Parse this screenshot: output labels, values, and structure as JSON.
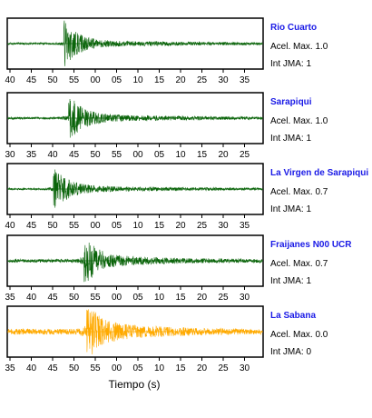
{
  "chart_data": {
    "type": "line",
    "xlabel": "Tiempo (s)",
    "panels": [
      {
        "station": "Rio Cuarto",
        "accel_label": "Acel. Max. 1.0",
        "jma_label": "Int JMA: 1",
        "color": "#0a640a",
        "tick_labels": [
          "40",
          "45",
          "50",
          "55",
          "00",
          "05",
          "10",
          "15",
          "20",
          "25",
          "30",
          "35"
        ],
        "arrival_fraction": 0.22,
        "relative_peak": 1.0,
        "coda_level": 0.12
      },
      {
        "station": "Sarapiqui",
        "accel_label": "Acel. Max. 1.0",
        "jma_label": "Int JMA: 1",
        "color": "#0a640a",
        "tick_labels": [
          "30",
          "35",
          "40",
          "45",
          "50",
          "55",
          "00",
          "05",
          "10",
          "15",
          "20",
          "25"
        ],
        "arrival_fraction": 0.24,
        "relative_peak": 0.95,
        "coda_level": 0.15
      },
      {
        "station": "La Virgen de Sarapiqui",
        "accel_label": "Acel. Max. 0.7",
        "jma_label": "Int JMA: 1",
        "color": "#0a640a",
        "tick_labels": [
          "40",
          "45",
          "50",
          "55",
          "00",
          "05",
          "10",
          "15",
          "20",
          "25",
          "30",
          "35"
        ],
        "arrival_fraction": 0.18,
        "relative_peak": 0.95,
        "coda_level": 0.12
      },
      {
        "station": "Fraijanes N00 UCR",
        "accel_label": "Acel. Max. 0.7",
        "jma_label": "Int JMA: 1",
        "color": "#0a640a",
        "tick_labels": [
          "35",
          "40",
          "45",
          "50",
          "55",
          "00",
          "05",
          "10",
          "15",
          "20",
          "25",
          "30"
        ],
        "arrival_fraction": 0.3,
        "relative_peak": 1.0,
        "coda_level": 0.2
      },
      {
        "station": "La Sabana",
        "accel_label": "Acel. Max. 0.0",
        "jma_label": "Int JMA: 0",
        "color": "#ffaa00",
        "tick_labels": [
          "35",
          "40",
          "45",
          "50",
          "55",
          "00",
          "05",
          "10",
          "15",
          "20",
          "25",
          "30"
        ],
        "arrival_fraction": 0.31,
        "relative_peak": 1.0,
        "coda_level": 0.35
      }
    ]
  }
}
